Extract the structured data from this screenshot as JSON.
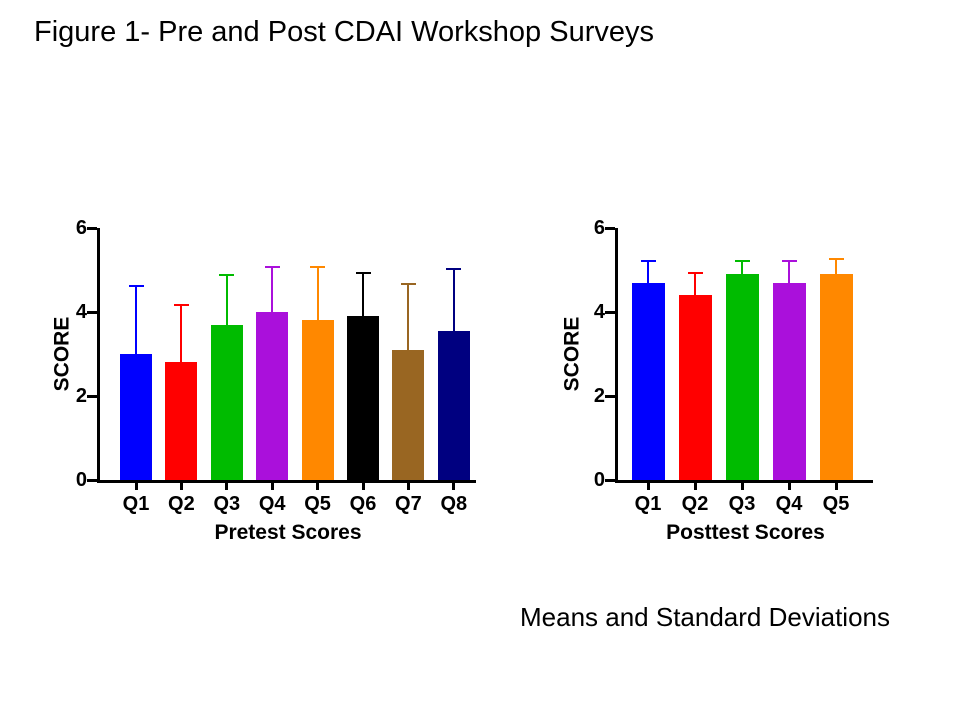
{
  "page": {
    "title": "Figure 1- Pre and Post CDAI Workshop Surveys",
    "caption": "Means and Standard Deviations"
  },
  "chart_data": [
    {
      "type": "bar",
      "title": "",
      "xlabel": "Pretest Scores",
      "ylabel": "SCORE",
      "ylim": [
        0,
        6
      ],
      "yticks": [
        0,
        2,
        4,
        6
      ],
      "grid": false,
      "legend": "none",
      "categories": [
        "Q1",
        "Q2",
        "Q3",
        "Q4",
        "Q5",
        "Q6",
        "Q7",
        "Q8"
      ],
      "values": [
        3.0,
        2.8,
        3.7,
        4.0,
        3.8,
        3.9,
        3.1,
        3.55
      ],
      "errors_plus": [
        1.6,
        1.35,
        1.15,
        1.05,
        1.25,
        1.0,
        1.55,
        1.45
      ],
      "bar_colors": [
        "#0000FF",
        "#FF0000",
        "#00BB00",
        "#AA10DB",
        "#FF8800",
        "#000000",
        "#996622",
        "#000080"
      ]
    },
    {
      "type": "bar",
      "title": "",
      "xlabel": "Posttest Scores",
      "ylabel": "SCORE",
      "ylim": [
        0,
        6
      ],
      "yticks": [
        0,
        2,
        4,
        6
      ],
      "grid": false,
      "legend": "none",
      "categories": [
        "Q1",
        "Q2",
        "Q3",
        "Q4",
        "Q5"
      ],
      "values": [
        4.7,
        4.4,
        4.9,
        4.7,
        4.9
      ],
      "errors_plus": [
        0.5,
        0.5,
        0.3,
        0.5,
        0.35
      ],
      "bar_colors": [
        "#0000FF",
        "#FF0000",
        "#00BB00",
        "#AA10DB",
        "#FF8800"
      ]
    }
  ]
}
